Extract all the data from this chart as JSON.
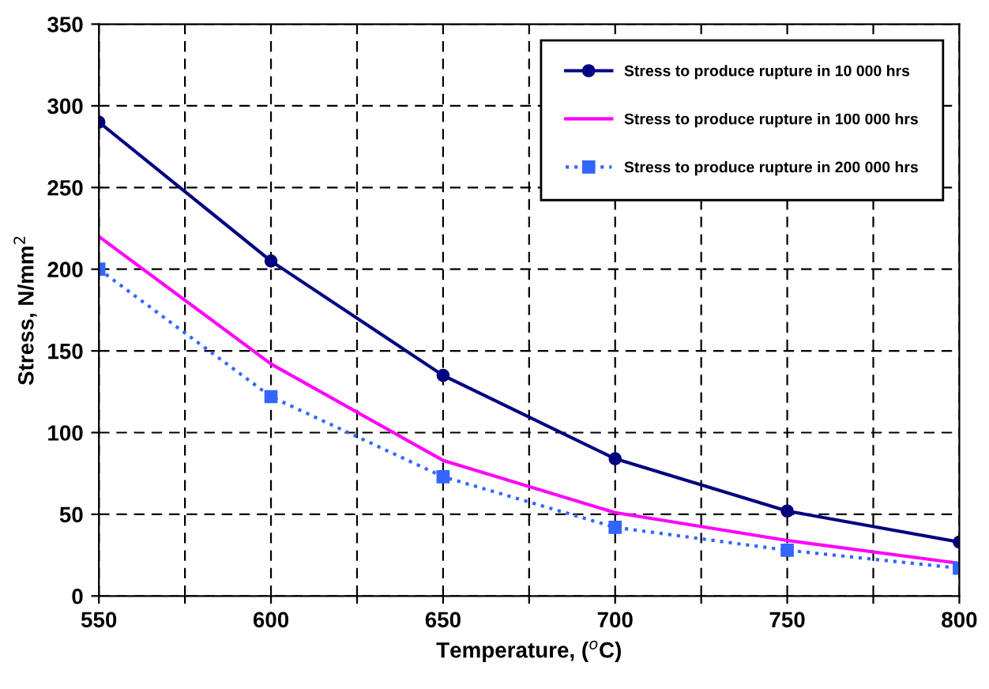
{
  "chart_data": {
    "type": "line",
    "xlabel": "Temperature, ($^{o}$C)",
    "ylabel": "Stress, N/mm$^{2}$",
    "x": [
      550,
      600,
      650,
      700,
      750,
      800
    ],
    "series": [
      {
        "name": "Stress to produce rupture in 10 000 hrs",
        "color": "#000080",
        "values": [
          290,
          205,
          135,
          84,
          52,
          33
        ],
        "marker": "circle",
        "line_style": "solid"
      },
      {
        "name": "Stress to produce rupture in 100 000 hrs",
        "color": "#ff00ff",
        "values": [
          220,
          142,
          83,
          51,
          34,
          20
        ],
        "line_style": "solid"
      },
      {
        "name": "Stress to produce rupture in 200 000 hrs",
        "color": "#3366ff",
        "values": [
          200,
          122,
          73,
          42,
          28,
          17
        ],
        "marker": "square",
        "line_style": "dotted"
      }
    ],
    "xlim": [
      550,
      800
    ],
    "xticks": [
      550,
      {
        "value": 575,
        "label": null
      },
      600,
      {
        "value": 625,
        "label": null
      },
      650,
      {
        "value": 675,
        "label": null
      },
      700,
      {
        "value": 725,
        "label": null
      },
      750,
      {
        "value": 775,
        "label": null
      },
      800
    ],
    "ylim": [
      0,
      350
    ],
    "yticks": [
      0,
      50,
      100,
      150,
      200,
      250,
      300,
      350
    ],
    "grid": true,
    "legend": "top right"
  }
}
